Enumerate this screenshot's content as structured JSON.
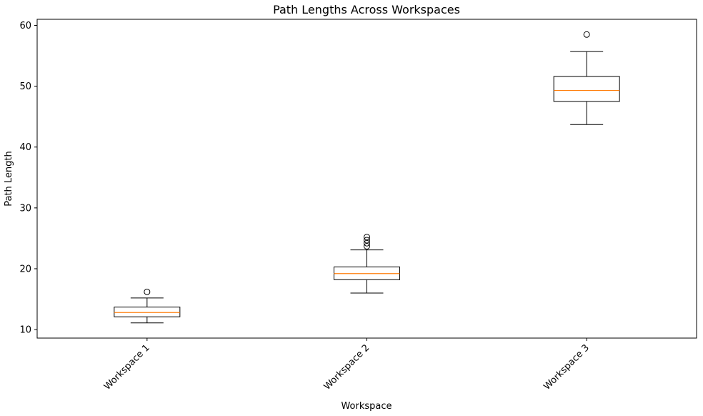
{
  "chart_data": {
    "type": "box",
    "title": "Path Lengths Across Workspaces",
    "xlabel": "Workspace",
    "ylabel": "Path Length",
    "ylim": [
      8.6,
      61.0
    ],
    "yticks": [
      10,
      20,
      30,
      40,
      50,
      60
    ],
    "categories": [
      "Workspace 1",
      "Workspace 2",
      "Workspace 3"
    ],
    "boxes": [
      {
        "category": "Workspace 1",
        "whisker_low": 11.1,
        "q1": 12.1,
        "median": 12.8,
        "q3": 13.7,
        "whisker_high": 15.2,
        "outliers": [
          16.2
        ]
      },
      {
        "category": "Workspace 2",
        "whisker_low": 16.0,
        "q1": 18.2,
        "median": 19.2,
        "q3": 20.3,
        "whisker_high": 23.1,
        "outliers": [
          23.7,
          24.2,
          24.7,
          25.2
        ]
      },
      {
        "category": "Workspace 3",
        "whisker_low": 43.7,
        "q1": 47.5,
        "median": 49.3,
        "q3": 51.6,
        "whisker_high": 55.7,
        "outliers": [
          58.5
        ]
      }
    ],
    "grid": false,
    "colors": {
      "box": "#000000",
      "median": "#ff7f0e",
      "outlier_edge": "#000000"
    }
  }
}
